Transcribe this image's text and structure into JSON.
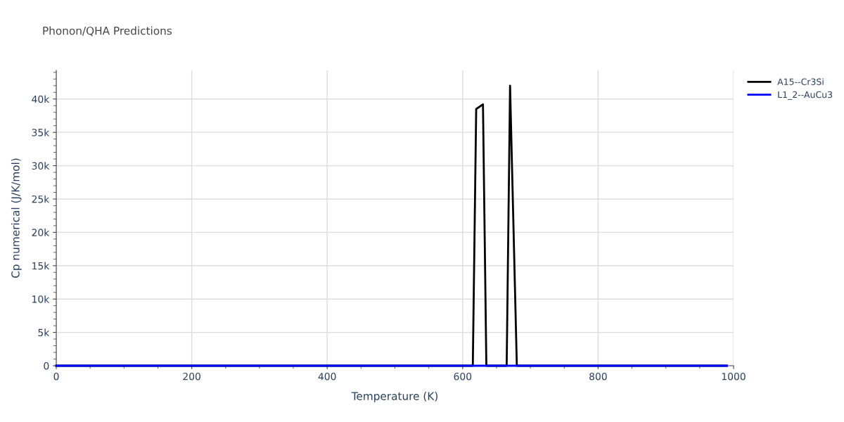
{
  "chart_data": {
    "type": "line",
    "title": "Phonon/QHA Predictions",
    "xlabel": "Temperature (K)",
    "ylabel": "Cp numerical (J/K/mol)",
    "series": [
      {
        "name": "A15--Cr3Si",
        "color": "#000000",
        "x": [
          0,
          100,
          200,
          300,
          400,
          500,
          600,
          615,
          620,
          630,
          635,
          665,
          670,
          680,
          700,
          800,
          900,
          990
        ],
        "values": [
          0,
          0,
          0,
          0,
          0,
          0,
          0,
          0,
          38500,
          39200,
          0,
          0,
          42000,
          0,
          0,
          0,
          0,
          0
        ]
      },
      {
        "name": "L1_2--AuCu3",
        "color": "#0000ff",
        "x": [
          0,
          100,
          200,
          300,
          400,
          500,
          600,
          700,
          800,
          900,
          990
        ],
        "values": [
          0,
          0,
          0,
          0,
          0,
          0,
          0,
          0,
          0,
          0,
          0
        ]
      }
    ],
    "xlim": [
      0,
      1000
    ],
    "xticks": [
      0,
      200,
      400,
      600,
      800,
      1000
    ],
    "ylim": [
      0,
      44300
    ],
    "yticks": [
      {
        "value": 0,
        "label": "0"
      },
      {
        "value": 5000,
        "label": "5k"
      },
      {
        "value": 10000,
        "label": "10k"
      },
      {
        "value": 15000,
        "label": "15k"
      },
      {
        "value": 20000,
        "label": "20k"
      },
      {
        "value": 25000,
        "label": "25k"
      },
      {
        "value": 30000,
        "label": "30k"
      },
      {
        "value": 35000,
        "label": "35k"
      },
      {
        "value": 40000,
        "label": "40k"
      }
    ],
    "grid": true,
    "legend": "top right",
    "marker": "none",
    "line_style": "solid"
  }
}
